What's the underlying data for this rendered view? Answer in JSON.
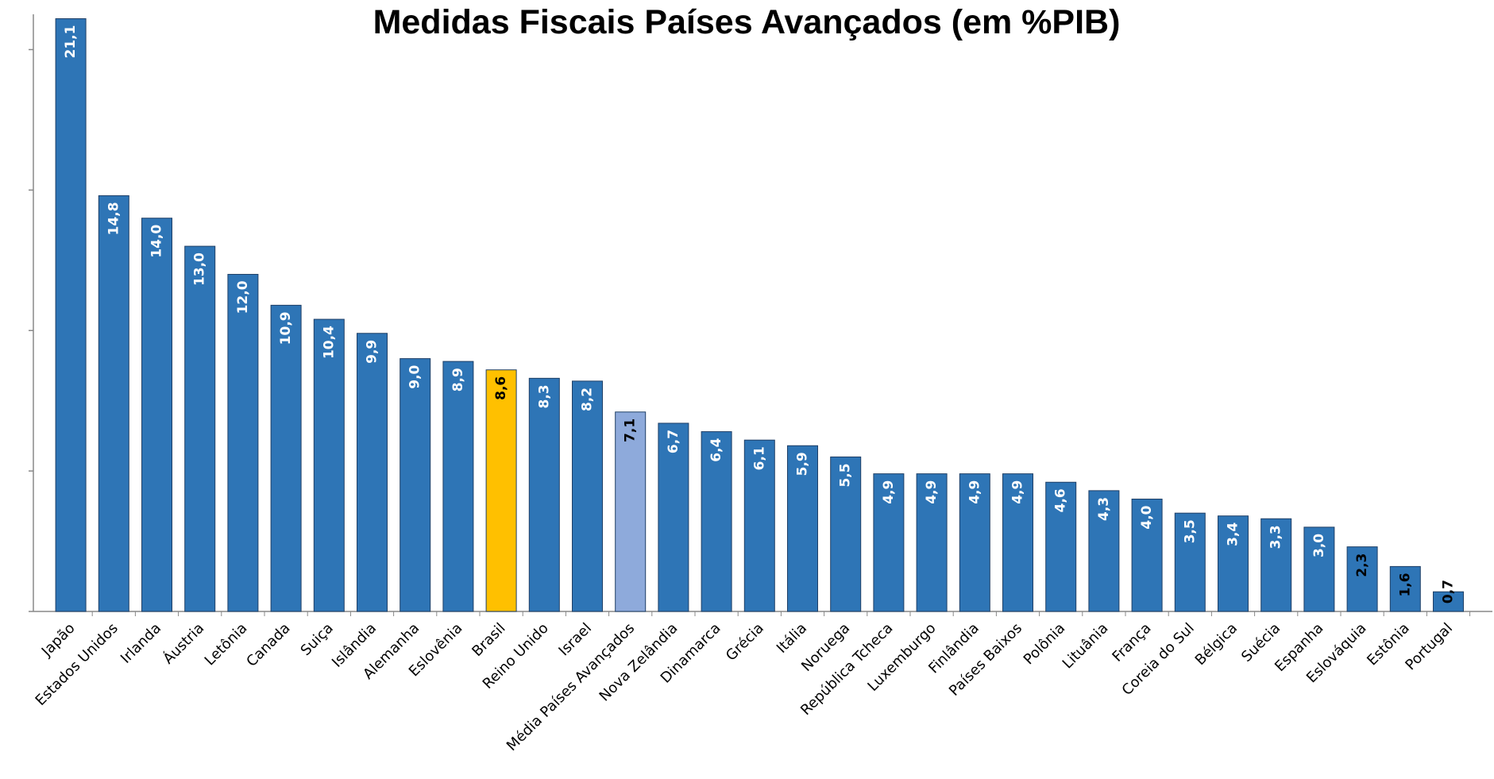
{
  "chart_data": {
    "type": "bar",
    "title": "Medidas Fiscais Países Avançados (em %PIB)",
    "categories": [
      "Japão",
      "Estados Unidos",
      "Irlanda",
      "Áustria",
      "Letônia",
      "Canada",
      "Suiça",
      "Islândia",
      "Alemanha",
      "Eslovênia",
      "Brasil",
      "Reino Unido",
      "Israel",
      "Média Países Avançados",
      "Nova Zelândia",
      "Dinamarca",
      "Grécia",
      "Itália",
      "Noruega",
      "República Tcheca",
      "Luxemburgo",
      "Finlândia",
      "Países Baixos",
      "Polônia",
      "Lituânia",
      "França",
      "Coreia do Sul",
      "Bélgica",
      "Suécia",
      "Espanha",
      "Eslováquia",
      "Estônia",
      "Portugal"
    ],
    "values": [
      21.1,
      14.8,
      14.0,
      13.0,
      12.0,
      10.9,
      10.4,
      9.9,
      9.0,
      8.9,
      8.6,
      8.3,
      8.2,
      7.1,
      6.7,
      6.4,
      6.1,
      5.9,
      5.5,
      4.9,
      4.9,
      4.9,
      4.9,
      4.6,
      4.3,
      4.0,
      3.5,
      3.4,
      3.3,
      3.0,
      2.3,
      1.6,
      0.7
    ],
    "value_labels": [
      "21,1",
      "14,8",
      "14,0",
      "13,0",
      "12,0",
      "10,9",
      "10,4",
      "9,9",
      "9,0",
      "8,9",
      "8,6",
      "8,3",
      "8,2",
      "7,1",
      "6,7",
      "6,4",
      "6,1",
      "5,9",
      "5,5",
      "4,9",
      "4,9",
      "4,9",
      "4,9",
      "4,6",
      "4,3",
      "4,0",
      "3,5",
      "3,4",
      "3,3",
      "3,0",
      "2,3",
      "1,6",
      "0,7"
    ],
    "colors": [
      "#2e75b6",
      "#2e75b6",
      "#2e75b6",
      "#2e75b6",
      "#2e75b6",
      "#2e75b6",
      "#2e75b6",
      "#2e75b6",
      "#2e75b6",
      "#2e75b6",
      "#ffc000",
      "#2e75b6",
      "#2e75b6",
      "#8eaadb",
      "#2e75b6",
      "#2e75b6",
      "#2e75b6",
      "#2e75b6",
      "#2e75b6",
      "#2e75b6",
      "#2e75b6",
      "#2e75b6",
      "#2e75b6",
      "#2e75b6",
      "#2e75b6",
      "#2e75b6",
      "#2e75b6",
      "#2e75b6",
      "#2e75b6",
      "#2e75b6",
      "#2e75b6",
      "#2e75b6",
      "#2e75b6"
    ],
    "label_colors": [
      "#ffffff",
      "#ffffff",
      "#ffffff",
      "#ffffff",
      "#ffffff",
      "#ffffff",
      "#ffffff",
      "#ffffff",
      "#ffffff",
      "#ffffff",
      "#000000",
      "#ffffff",
      "#ffffff",
      "#000000",
      "#ffffff",
      "#ffffff",
      "#ffffff",
      "#ffffff",
      "#ffffff",
      "#ffffff",
      "#ffffff",
      "#ffffff",
      "#ffffff",
      "#ffffff",
      "#ffffff",
      "#ffffff",
      "#ffffff",
      "#ffffff",
      "#ffffff",
      "#ffffff",
      "#000000",
      "#000000",
      "#000000"
    ],
    "ylim": [
      0,
      21.2
    ],
    "yticks": [
      0,
      5,
      10,
      15,
      20
    ]
  }
}
